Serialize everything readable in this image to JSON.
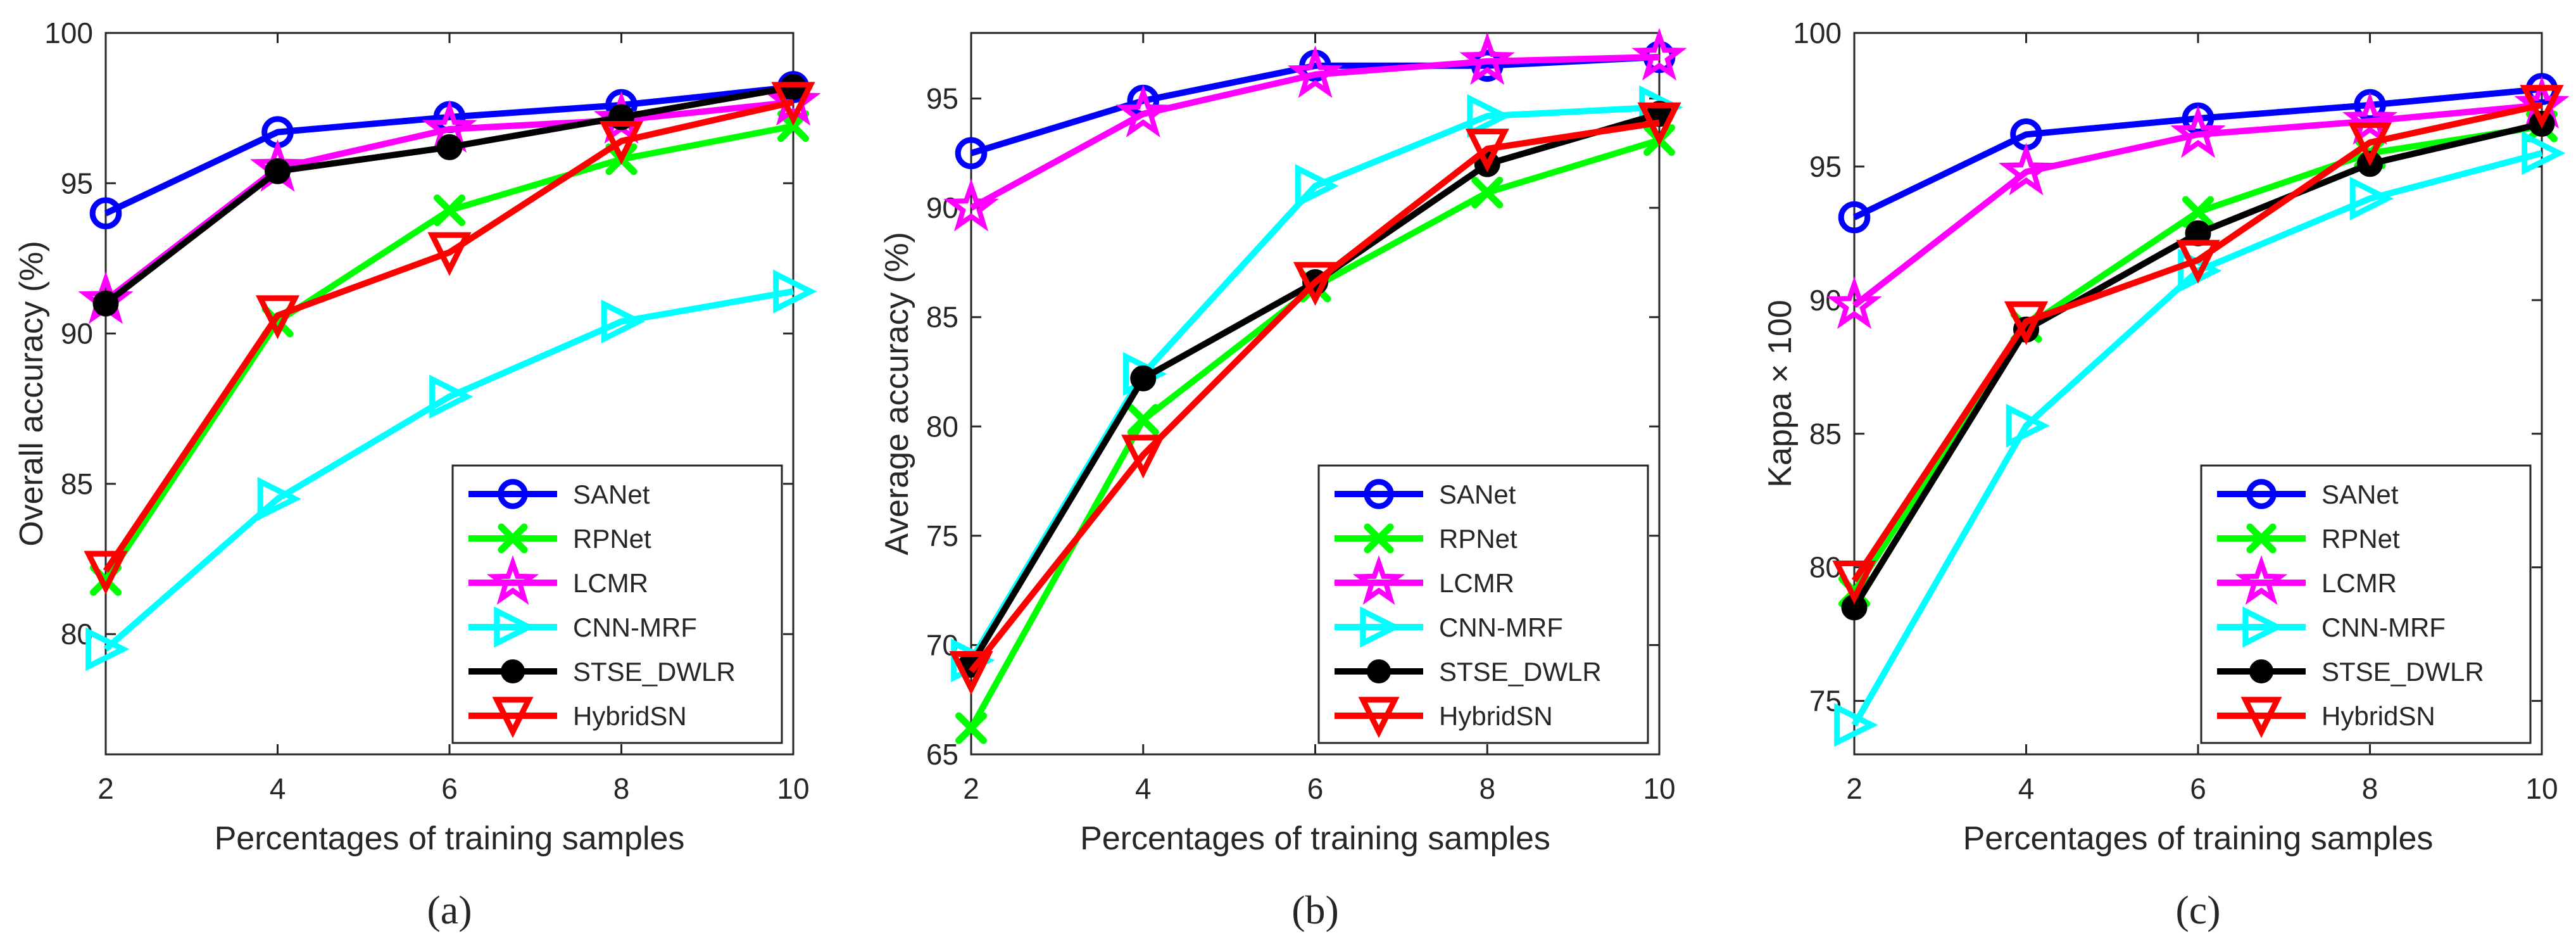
{
  "series_styles": [
    {
      "name": "SANet",
      "color": "#0000ff",
      "marker": "circle"
    },
    {
      "name": "RPNet",
      "color": "#00ff00",
      "marker": "x"
    },
    {
      "name": "LCMR",
      "color": "#ff00ff",
      "marker": "star"
    },
    {
      "name": "CNN-MRF",
      "color": "#00ffff",
      "marker": "triangle-right"
    },
    {
      "name": "STSE_DWLR",
      "color": "#000000",
      "marker": "dot"
    },
    {
      "name": "HybridSN",
      "color": "#ff0000",
      "marker": "triangle-down"
    }
  ],
  "chart_data": [
    {
      "type": "line",
      "caption": "(a)",
      "xlabel": "Percentages of training samples",
      "ylabel": "Overall accuracy (%)",
      "x": [
        2,
        4,
        6,
        8,
        10
      ],
      "xticks": [
        2,
        4,
        6,
        8,
        10
      ],
      "yticks": [
        80,
        85,
        90,
        95,
        100
      ],
      "xlim": [
        2,
        10
      ],
      "ylim": [
        76,
        100
      ],
      "legend_position": "bottom-right",
      "series": [
        {
          "name": "SANet",
          "values": [
            94.0,
            96.7,
            97.2,
            97.6,
            98.2
          ]
        },
        {
          "name": "RPNet",
          "values": [
            81.8,
            90.4,
            94.1,
            95.8,
            96.9
          ]
        },
        {
          "name": "LCMR",
          "values": [
            91.1,
            95.5,
            96.8,
            97.1,
            97.7
          ]
        },
        {
          "name": "CNN-MRF",
          "values": [
            79.5,
            84.5,
            87.9,
            90.4,
            91.4
          ]
        },
        {
          "name": "STSE_DWLR",
          "values": [
            91.0,
            95.4,
            96.2,
            97.2,
            98.2
          ]
        },
        {
          "name": "HybridSN",
          "values": [
            82.1,
            90.6,
            92.7,
            96.4,
            97.7
          ]
        }
      ]
    },
    {
      "type": "line",
      "caption": "(b)",
      "xlabel": "Percentages of training samples",
      "ylabel": "Average accuracy (%)",
      "x": [
        2,
        4,
        6,
        8,
        10
      ],
      "xticks": [
        2,
        4,
        6,
        8,
        10
      ],
      "yticks": [
        65,
        70,
        75,
        80,
        85,
        90,
        95
      ],
      "xlim": [
        2,
        10
      ],
      "ylim": [
        65,
        98
      ],
      "legend_position": "bottom-right",
      "series": [
        {
          "name": "SANet",
          "values": [
            92.5,
            94.9,
            96.5,
            96.5,
            96.9
          ]
        },
        {
          "name": "RPNet",
          "values": [
            66.2,
            80.3,
            86.4,
            90.7,
            93.1
          ]
        },
        {
          "name": "LCMR",
          "values": [
            90.0,
            94.3,
            96.1,
            96.7,
            96.9
          ]
        },
        {
          "name": "CNN-MRF",
          "values": [
            69.3,
            82.4,
            91.0,
            94.2,
            94.6
          ]
        },
        {
          "name": "STSE_DWLR",
          "values": [
            69.1,
            82.2,
            86.6,
            92.0,
            94.3
          ]
        },
        {
          "name": "HybridSN",
          "values": [
            68.8,
            78.7,
            86.6,
            92.7,
            93.9
          ]
        }
      ]
    },
    {
      "type": "line",
      "caption": "(c)",
      "xlabel": "Percentages of training samples",
      "ylabel": "Kappa × 100",
      "x": [
        2,
        4,
        6,
        8,
        10
      ],
      "xticks": [
        2,
        4,
        6,
        8,
        10
      ],
      "yticks": [
        75,
        80,
        85,
        90,
        95,
        100
      ],
      "xlim": [
        2,
        10
      ],
      "ylim": [
        73,
        100
      ],
      "legend_position": "bottom-right",
      "series": [
        {
          "name": "SANet",
          "values": [
            93.1,
            96.2,
            96.8,
            97.3,
            97.9
          ]
        },
        {
          "name": "RPNet",
          "values": [
            79.1,
            89.0,
            93.3,
            95.5,
            96.5
          ]
        },
        {
          "name": "LCMR",
          "values": [
            89.8,
            94.8,
            96.2,
            96.7,
            97.3
          ]
        },
        {
          "name": "CNN-MRF",
          "values": [
            74.1,
            85.3,
            91.1,
            93.8,
            95.5
          ]
        },
        {
          "name": "STSE_DWLR",
          "values": [
            78.5,
            88.9,
            92.5,
            95.1,
            96.6
          ]
        },
        {
          "name": "HybridSN",
          "values": [
            79.5,
            89.2,
            91.5,
            95.9,
            97.3
          ]
        }
      ]
    }
  ]
}
